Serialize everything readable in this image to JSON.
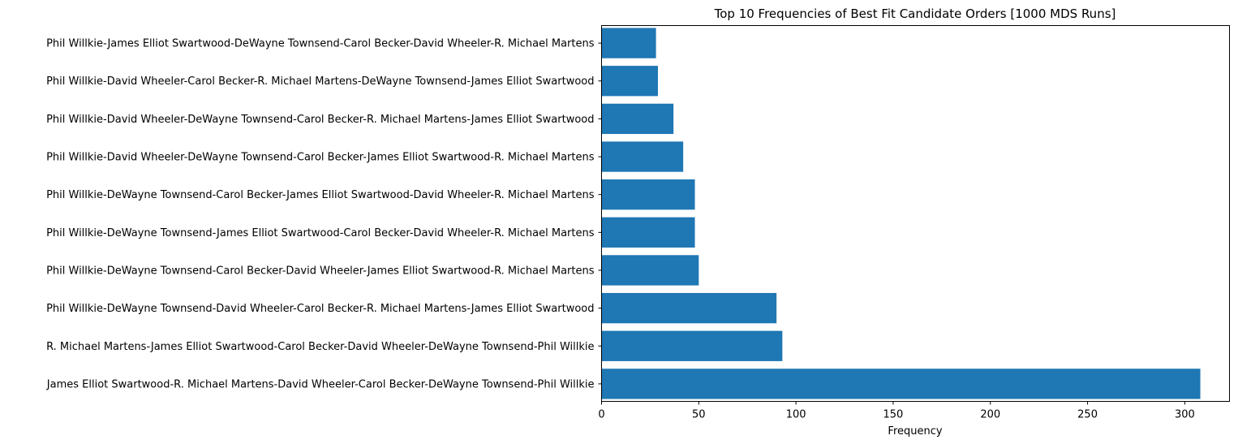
{
  "chart_data": {
    "type": "bar",
    "orientation": "horizontal",
    "title": "Top 10 Frequencies of Best Fit Candidate Orders [1000 MDS Runs]",
    "xlabel": "Frequency",
    "ylabel": "",
    "xlim": [
      0,
      323
    ],
    "xticks": [
      0,
      50,
      100,
      150,
      200,
      250,
      300
    ],
    "bar_color": "#1f77b4",
    "grid": false,
    "legend": "none",
    "categories": [
      "James Elliot Swartwood-R. Michael Martens-David Wheeler-Carol Becker-DeWayne Townsend-Phil Willkie",
      "R. Michael Martens-James Elliot Swartwood-Carol Becker-David Wheeler-DeWayne Townsend-Phil Willkie",
      "Phil Willkie-DeWayne Townsend-David Wheeler-Carol Becker-R. Michael Martens-James Elliot Swartwood",
      "Phil Willkie-DeWayne Townsend-Carol Becker-David Wheeler-James Elliot Swartwood-R. Michael Martens",
      "Phil Willkie-DeWayne Townsend-James Elliot Swartwood-Carol Becker-David Wheeler-R. Michael Martens",
      "Phil Willkie-DeWayne Townsend-Carol Becker-James Elliot Swartwood-David Wheeler-R. Michael Martens",
      "Phil Willkie-David Wheeler-DeWayne Townsend-Carol Becker-James Elliot Swartwood-R. Michael Martens",
      "Phil Willkie-David Wheeler-DeWayne Townsend-Carol Becker-R. Michael Martens-James Elliot Swartwood",
      "Phil Willkie-David Wheeler-Carol Becker-R. Michael Martens-DeWayne Townsend-James Elliot Swartwood",
      "Phil Willkie-James Elliot Swartwood-DeWayne Townsend-Carol Becker-David Wheeler-R. Michael Martens"
    ],
    "values": [
      308,
      93,
      90,
      50,
      48,
      48,
      42,
      37,
      29,
      28
    ]
  }
}
